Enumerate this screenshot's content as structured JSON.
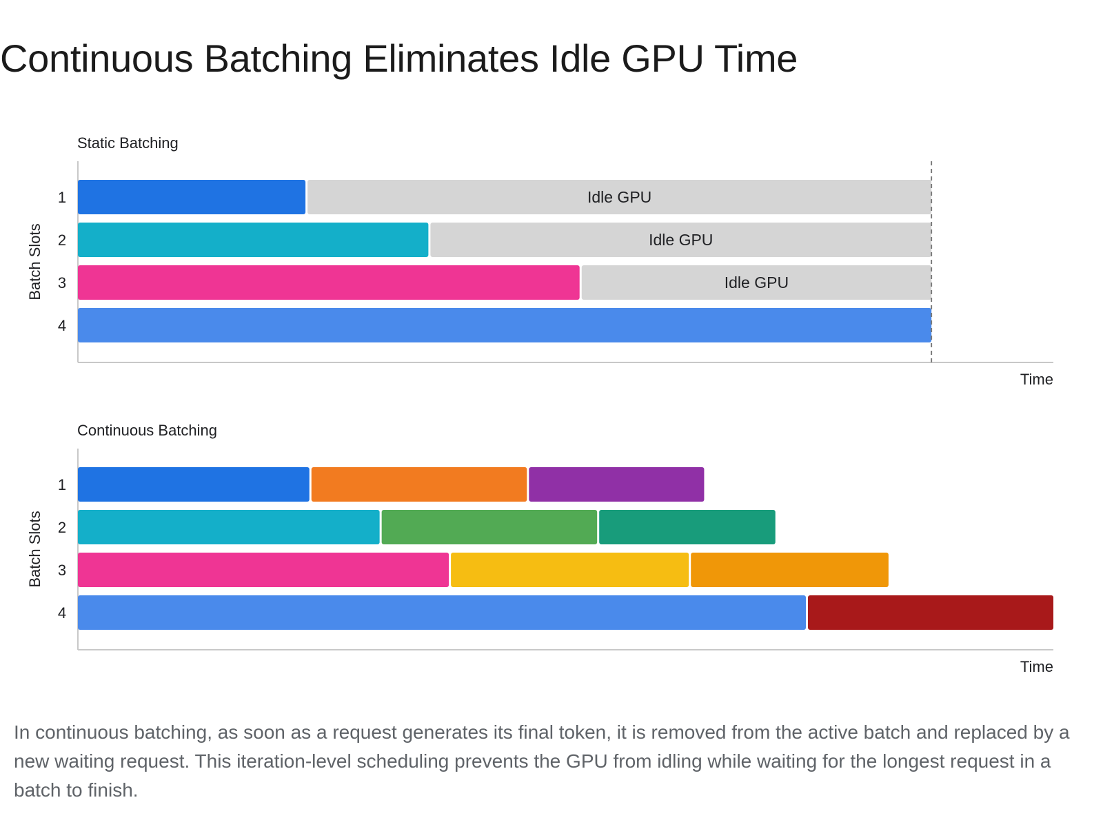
{
  "page": {
    "title": "Continuous Batching Eliminates Idle GPU Time"
  },
  "caption": "In continuous batching, as soon as a request generates its final token, it is removed from the active batch and replaced by a new waiting request. This iteration-level scheduling prevents the GPU from idling while waiting for the longest request in a batch to finish.",
  "colors": {
    "axis": "#c8c8c8",
    "idle": "#d5d5d5",
    "text": "#202124"
  },
  "chart_data": [
    {
      "type": "gantt",
      "title": "Static Batching",
      "ylabel": "Batch Slots",
      "xlabel": "Time",
      "xlim": [
        0,
        100
      ],
      "slots": [
        "1",
        "2",
        "3",
        "4"
      ],
      "end_marker": 87.5,
      "rows": [
        {
          "segments": [
            {
              "start": 0,
              "end": 23.4,
              "color": "#1f73e3"
            },
            {
              "start": 23.4,
              "end": 87.5,
              "color": "#d5d5d5",
              "label": "Idle GPU"
            }
          ]
        },
        {
          "segments": [
            {
              "start": 0,
              "end": 36,
              "color": "#14afc9"
            },
            {
              "start": 36,
              "end": 87.5,
              "color": "#d5d5d5",
              "label": "Idle GPU"
            }
          ]
        },
        {
          "segments": [
            {
              "start": 0,
              "end": 51.5,
              "color": "#ef3594"
            },
            {
              "start": 51.5,
              "end": 87.5,
              "color": "#d5d5d5",
              "label": "Idle GPU"
            }
          ]
        },
        {
          "segments": [
            {
              "start": 0,
              "end": 87.5,
              "color": "#4a8aeb"
            }
          ]
        }
      ]
    },
    {
      "type": "gantt",
      "title": "Continuous Batching",
      "ylabel": "Batch Slots",
      "xlabel": "Time",
      "xlim": [
        0,
        100
      ],
      "slots": [
        "1",
        "2",
        "3",
        "4"
      ],
      "rows": [
        {
          "segments": [
            {
              "start": 0,
              "end": 23.8,
              "color": "#1f73e3"
            },
            {
              "start": 23.8,
              "end": 46.1,
              "color": "#f27b20"
            },
            {
              "start": 46.1,
              "end": 64.2,
              "color": "#9030a6"
            }
          ]
        },
        {
          "segments": [
            {
              "start": 0,
              "end": 31,
              "color": "#14afc9"
            },
            {
              "start": 31,
              "end": 53.3,
              "color": "#52aa54"
            },
            {
              "start": 53.3,
              "end": 71.5,
              "color": "#189c7b"
            }
          ]
        },
        {
          "segments": [
            {
              "start": 0,
              "end": 38.1,
              "color": "#ef3594"
            },
            {
              "start": 38.1,
              "end": 62.7,
              "color": "#f6bd12"
            },
            {
              "start": 62.7,
              "end": 83.1,
              "color": "#f09708"
            }
          ]
        },
        {
          "segments": [
            {
              "start": 0,
              "end": 74.7,
              "color": "#4a8aeb"
            },
            {
              "start": 74.7,
              "end": 100,
              "color": "#a8191a"
            }
          ]
        }
      ]
    }
  ]
}
